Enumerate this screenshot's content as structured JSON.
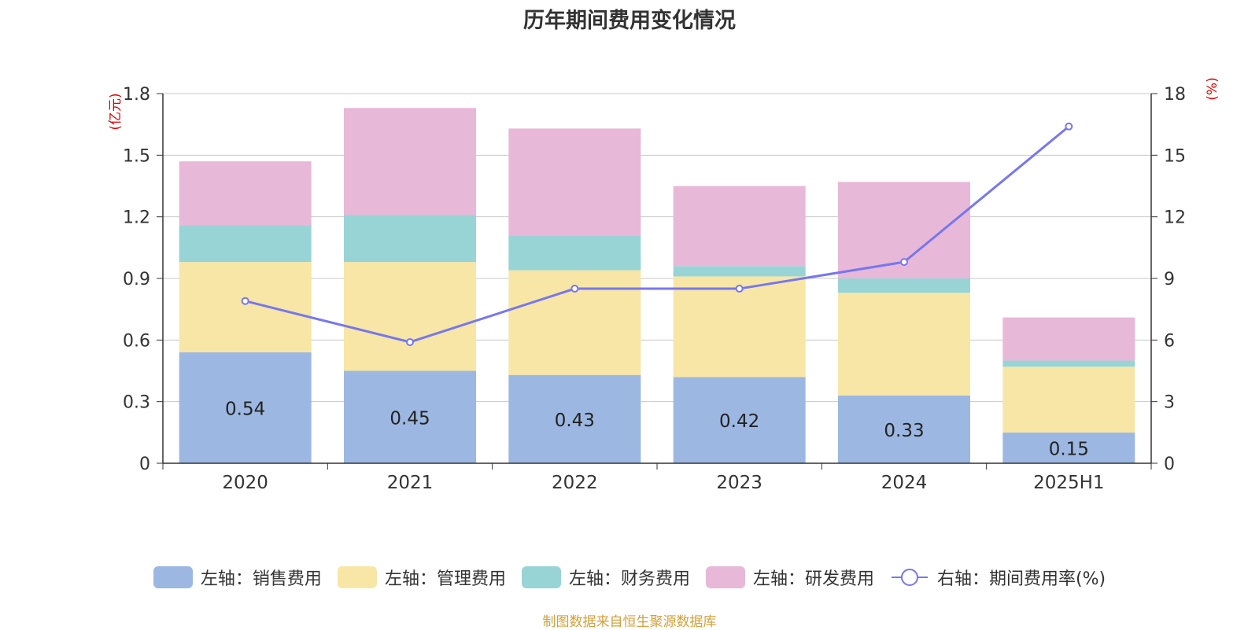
{
  "chart_data": {
    "type": "bar",
    "title": "历年期间费用变化情况",
    "categories": [
      "2020",
      "2021",
      "2022",
      "2023",
      "2024",
      "2025H1"
    ],
    "left_axis": {
      "unit_label": "(亿元)",
      "ylim": [
        0,
        1.8
      ],
      "ticks": [
        "0",
        "0.3",
        "0.6",
        "0.9",
        "1.2",
        "1.5",
        "1.8"
      ]
    },
    "right_axis": {
      "unit_label": "(%)",
      "ylim": [
        0,
        18
      ],
      "ticks": [
        "0",
        "3",
        "6",
        "9",
        "12",
        "15",
        "18"
      ]
    },
    "series": [
      {
        "name": "左轴：销售费用",
        "type": "bar",
        "axis": "left",
        "color": "#9cb8e2",
        "values": [
          0.54,
          0.45,
          0.43,
          0.42,
          0.33,
          0.15
        ],
        "data_labels": [
          "0.54",
          "0.45",
          "0.43",
          "0.42",
          "0.33",
          "0.15"
        ]
      },
      {
        "name": "左轴：管理费用",
        "type": "bar",
        "axis": "left",
        "color": "#f7e6a6",
        "values": [
          0.44,
          0.53,
          0.51,
          0.49,
          0.5,
          0.32
        ]
      },
      {
        "name": "左轴：财务费用",
        "type": "bar",
        "axis": "left",
        "color": "#98d4d6",
        "values": [
          0.18,
          0.23,
          0.17,
          0.05,
          0.07,
          0.03
        ]
      },
      {
        "name": "左轴：研发费用",
        "type": "bar",
        "axis": "left",
        "color": "#e8b8d8",
        "values": [
          0.31,
          0.52,
          0.52,
          0.39,
          0.47,
          0.21
        ]
      },
      {
        "name": "右轴：期间费用率(%)",
        "type": "line",
        "axis": "right",
        "color": "#7777ee",
        "values": [
          7.9,
          5.9,
          8.5,
          8.5,
          9.8,
          16.4
        ]
      }
    ],
    "legend_position": "bottom",
    "grid": true
  },
  "source_note": "制图数据来自恒生聚源数据库"
}
